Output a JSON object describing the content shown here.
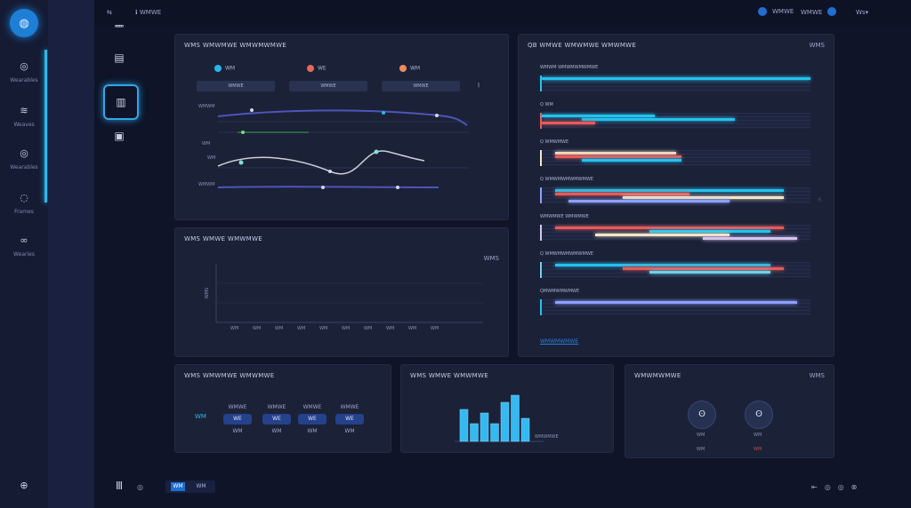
{
  "topbar": {
    "crumb": "ℹ︎ WMWE",
    "user": "WMWE",
    "action1": "WMWE",
    "action2": "Ws▾"
  },
  "sidebar": {
    "items": [
      {
        "label": "Wearables"
      },
      {
        "label": "Weaves"
      },
      {
        "label": "Wearables"
      },
      {
        "label": "Frames"
      },
      {
        "label": "Wearies"
      }
    ]
  },
  "tools": {
    "top_label": "wmb"
  },
  "panel_trends": {
    "title": "WMS WMWMWE WMWMWMWE",
    "legend": [
      "WM",
      "WE",
      "WM"
    ],
    "legend_colors": [
      "#2ab6ea",
      "#e8675a",
      "#ec8a5e"
    ],
    "pills": [
      "WMWE",
      "WMWE",
      "WMWE"
    ],
    "extra": "‖",
    "row_labels": [
      "WMWM",
      "WM",
      "WM",
      "WMWM"
    ]
  },
  "panel_empty": {
    "title": "WMS WMWE WMWMWE",
    "meta": "WMS",
    "ylabel": "WMS",
    "ticks": [
      "WM",
      "WM",
      "WM",
      "WM",
      "WM",
      "WM",
      "WM",
      "WM",
      "WM",
      "WM",
      "WM"
    ]
  },
  "panel_gantt": {
    "title": "QB WMWE WMWMWE WMWMWE",
    "meta": "WMS",
    "rows": [
      "WMWM WMWMWMWMWE",
      "Q WM",
      "Q WMWMWE",
      "Q WMWMWMWMWMWE",
      "WMWMWE WMWMWE",
      "Q WMWMWMWMWMWE",
      "QMWMWMWMWE"
    ],
    "link": "WMWMWMWE"
  },
  "panel_kpi": {
    "title": "WMS WMWMWE WMWMWE",
    "side": "WM",
    "items": [
      {
        "top": "WMWE",
        "box": "WE",
        "bot": "WM"
      },
      {
        "top": "WMWE",
        "box": "WE",
        "bot": "WM"
      },
      {
        "top": "WMWE",
        "box": "WE",
        "bot": "WM"
      },
      {
        "top": "WMWE",
        "box": "WE",
        "bot": "WM"
      }
    ]
  },
  "panel_bars": {
    "title": "WMS WMWE WMWMWE",
    "values": [
      36,
      20,
      32,
      20,
      44,
      52,
      26
    ],
    "baseline_label": "WMWMWE"
  },
  "panel_circles": {
    "title": "WMWMWMWE",
    "meta": "WMS",
    "items": [
      {
        "icon": "ʘ",
        "label": "WM",
        "sub": "WM"
      },
      {
        "icon": "ʘ",
        "label": "WM",
        "sub": "WM"
      }
    ]
  },
  "footer": {
    "left_icon": "◎",
    "pager": [
      "WM",
      "WM"
    ]
  }
}
